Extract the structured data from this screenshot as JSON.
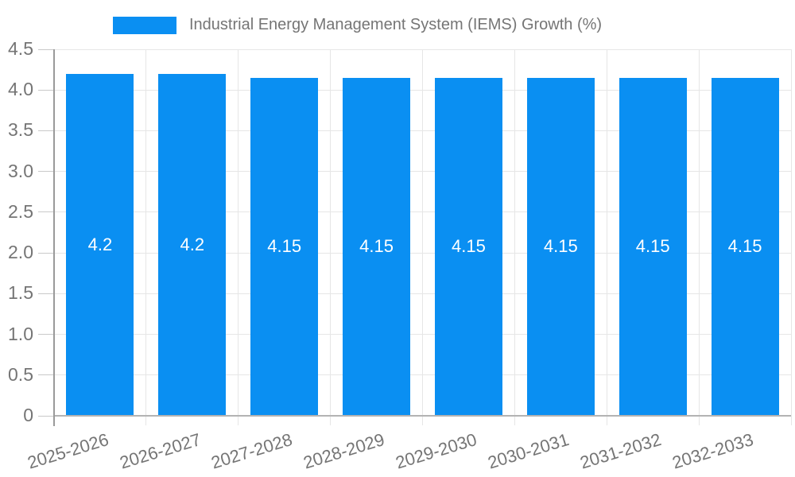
{
  "chart_data": {
    "type": "bar",
    "title": "Industrial Energy Management System (IEMS) Growth (%)",
    "legend_position": "top",
    "categories": [
      "2025-2026",
      "2026-2027",
      "2027-2028",
      "2028-2029",
      "2029-2030",
      "2030-2031",
      "2031-2032",
      "2032-2033"
    ],
    "series": [
      {
        "name": "Industrial Energy Management System (IEMS) Growth (%)",
        "values": [
          4.2,
          4.2,
          4.15,
          4.15,
          4.15,
          4.15,
          4.15,
          4.15
        ]
      }
    ],
    "bar_value_labels": [
      "4.2",
      "4.2",
      "4.15",
      "4.15",
      "4.15",
      "4.15",
      "4.15",
      "4.15"
    ],
    "xlabel": "",
    "ylabel": "",
    "ylim": [
      0,
      4.5
    ],
    "yticks": [
      0,
      0.5,
      1,
      1.5,
      2,
      2.5,
      3,
      3.5,
      4,
      4.5
    ],
    "ytick_labels": [
      "0",
      "0.5",
      "1.0",
      "1.5",
      "2.0",
      "2.5",
      "3.0",
      "3.5",
      "4.0",
      "4.5"
    ],
    "grid": true,
    "colors": {
      "bar": "#0a8ff2",
      "bar_label_text": "#ffffff",
      "axis_text": "#757575",
      "gridline": "#e6e6e6",
      "tick": "#c9c9c9",
      "y_axis_line": "#9a9a9a",
      "x_axis_line": "#b3b3b3",
      "background": "#ffffff"
    }
  }
}
